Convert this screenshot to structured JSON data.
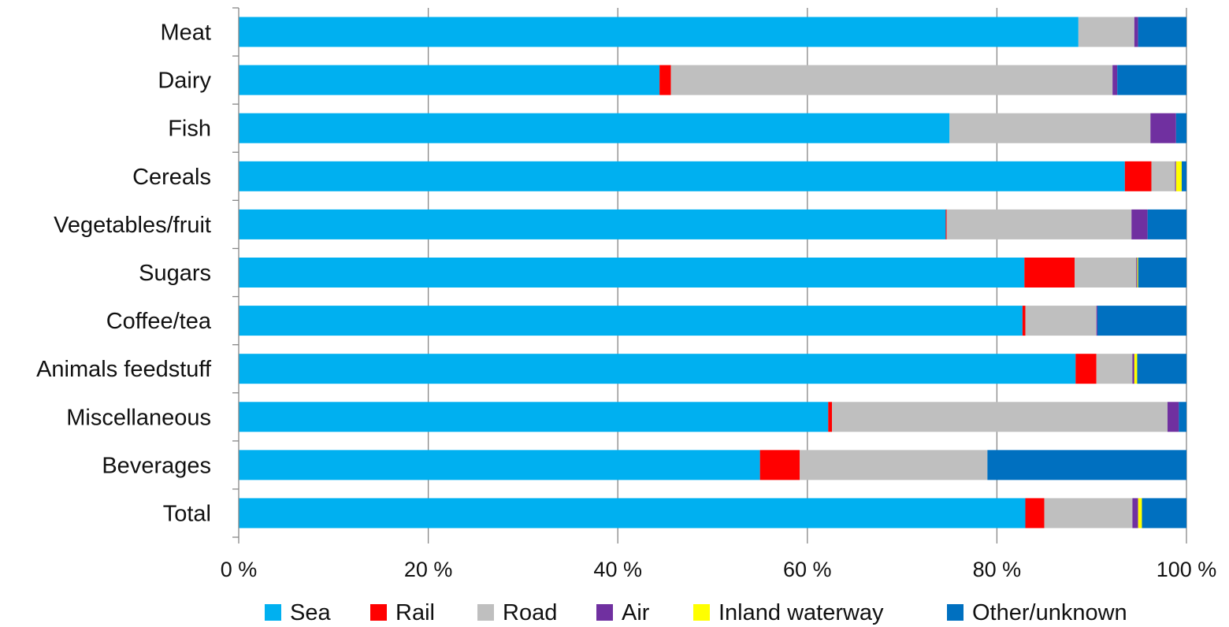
{
  "chart_data": {
    "type": "bar",
    "orientation": "horizontal",
    "stacked": "percent",
    "categories": [
      "Meat",
      "Dairy",
      "Fish",
      "Cereals",
      "Vegetables/fruit",
      "Sugars",
      "Coffee/tea",
      "Animals feedstuff",
      "Miscellaneous",
      "Beverages",
      "Total"
    ],
    "series": [
      {
        "name": "Sea",
        "color": "#00B0F0",
        "values": [
          88.6,
          44.4,
          75.0,
          93.5,
          74.6,
          82.9,
          82.7,
          88.3,
          62.2,
          55.0,
          83.0
        ]
      },
      {
        "name": "Rail",
        "color": "#FF0000",
        "values": [
          0.0,
          1.2,
          0.0,
          2.8,
          0.1,
          5.3,
          0.3,
          2.2,
          0.4,
          4.2,
          2.0
        ]
      },
      {
        "name": "Road",
        "color": "#BFBFBF",
        "values": [
          5.9,
          46.6,
          21.2,
          2.5,
          19.5,
          6.5,
          7.5,
          3.8,
          35.4,
          19.8,
          9.3
        ]
      },
      {
        "name": "Air",
        "color": "#7030A0",
        "values": [
          0.4,
          0.5,
          2.7,
          0.1,
          1.7,
          0.1,
          0.1,
          0.2,
          1.2,
          0.0,
          0.6
        ]
      },
      {
        "name": "Inland waterway",
        "color": "#FFFF00",
        "values": [
          0.0,
          0.0,
          0.0,
          0.6,
          0.0,
          0.1,
          0.0,
          0.3,
          0.0,
          0.0,
          0.4
        ]
      },
      {
        "name": "Other/unknown",
        "color": "#0070C0",
        "values": [
          5.1,
          7.3,
          1.1,
          0.5,
          4.1,
          5.1,
          9.4,
          5.2,
          0.8,
          21.0,
          4.7
        ]
      }
    ],
    "xlim": [
      0,
      100
    ],
    "x_ticks": [
      "0 %",
      "20 %",
      "40 %",
      "60 %",
      "80 %",
      "100 %"
    ],
    "grid": true,
    "legend_position": "bottom"
  }
}
